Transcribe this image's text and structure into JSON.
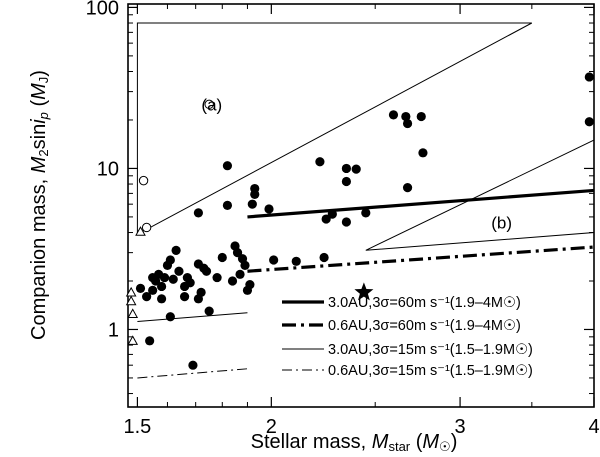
{
  "chart_data": {
    "type": "scatter",
    "title": "",
    "xlabel": "Stellar mass, M_star (M_☉)",
    "ylabel": "Companion mass, M_2 sin i_p (M_J)",
    "xscale": "log",
    "yscale": "log",
    "xlim": [
      1.47,
      4.0
    ],
    "ylim": [
      0.33,
      105
    ],
    "x_ticks": [
      {
        "value": 1.5,
        "label": "1.5"
      },
      {
        "value": 2,
        "label": "2"
      },
      {
        "value": 3,
        "label": "3"
      },
      {
        "value": 4,
        "label": "4"
      }
    ],
    "y_ticks": [
      {
        "value": 1,
        "label": "1"
      },
      {
        "value": 10,
        "label": "10"
      },
      {
        "value": 100,
        "label": "100"
      }
    ],
    "legend_position": "bottom-right",
    "annotations": [
      {
        "text": "(a)",
        "x": 1.76,
        "y": 25
      },
      {
        "text": "(b)",
        "x": 3.28,
        "y": 4.6
      }
    ],
    "series": [
      {
        "marker": "filled-circle",
        "points": [
          [
            1.51,
            1.8
          ],
          [
            1.53,
            1.6
          ],
          [
            1.54,
            0.85
          ],
          [
            1.55,
            2.1
          ],
          [
            1.55,
            1.75
          ],
          [
            1.56,
            2.0
          ],
          [
            1.57,
            2.2
          ],
          [
            1.58,
            1.85
          ],
          [
            1.58,
            1.55
          ],
          [
            1.59,
            2.1
          ],
          [
            1.6,
            2.5
          ],
          [
            1.61,
            1.2
          ],
          [
            1.61,
            2.7
          ],
          [
            1.62,
            2.05
          ],
          [
            1.63,
            3.1
          ],
          [
            1.64,
            2.3
          ],
          [
            1.66,
            1.85
          ],
          [
            1.66,
            1.6
          ],
          [
            1.67,
            2.1
          ],
          [
            1.68,
            1.95
          ],
          [
            1.69,
            0.6
          ],
          [
            1.71,
            1.55
          ],
          [
            1.71,
            5.3
          ],
          [
            1.71,
            2.55
          ],
          [
            1.72,
            1.7
          ],
          [
            1.73,
            2.4
          ],
          [
            1.74,
            2.3
          ],
          [
            1.75,
            1.3
          ],
          [
            1.78,
            2.1
          ],
          [
            1.8,
            2.8
          ],
          [
            1.82,
            10.4
          ],
          [
            1.82,
            5.9
          ],
          [
            1.84,
            2.0
          ],
          [
            1.85,
            3.3
          ],
          [
            1.86,
            3.0
          ],
          [
            1.87,
            2.2
          ],
          [
            1.88,
            2.75
          ],
          [
            1.89,
            2.5
          ],
          [
            1.9,
            1.75
          ],
          [
            1.91,
            1.9
          ],
          [
            1.92,
            6.0
          ],
          [
            1.93,
            6.9
          ],
          [
            1.93,
            7.5
          ],
          [
            1.99,
            5.6
          ],
          [
            2.01,
            2.7
          ],
          [
            2.11,
            2.65
          ],
          [
            2.22,
            11.0
          ],
          [
            2.24,
            2.8
          ],
          [
            2.25,
            4.85
          ],
          [
            2.28,
            5.2
          ],
          [
            2.35,
            4.65
          ],
          [
            2.35,
            10.0
          ],
          [
            2.35,
            8.3
          ],
          [
            2.4,
            9.9
          ],
          [
            2.45,
            5.3
          ],
          [
            2.6,
            21.5
          ],
          [
            2.67,
            21.0
          ],
          [
            2.68,
            19.0
          ],
          [
            2.68,
            7.6
          ],
          [
            2.76,
            21.0
          ],
          [
            2.77,
            12.5
          ],
          [
            3.96,
            37.0
          ],
          [
            3.96,
            19.5
          ]
        ]
      },
      {
        "marker": "open-circle",
        "points": [
          [
            1.52,
            8.4
          ],
          [
            1.53,
            4.3
          ],
          [
            1.75,
            25.0
          ]
        ]
      },
      {
        "marker": "open-triangle",
        "points": [
          [
            1.48,
            1.7
          ],
          [
            1.48,
            1.5
          ],
          [
            1.485,
            1.25
          ],
          [
            1.485,
            0.85
          ],
          [
            1.51,
            4.05
          ]
        ]
      },
      {
        "marker": "star",
        "points": [
          [
            2.44,
            1.7
          ]
        ]
      },
      {
        "name": "3.0AU,3σ=60m s⁻¹(1.9–4M☉)",
        "style": "thick-solid",
        "points": [
          [
            1.9,
            5.0
          ],
          [
            4.0,
            7.3
          ]
        ]
      },
      {
        "name": "0.6AU,3σ=60m s⁻¹(1.9–4M☉)",
        "style": "thick-dash-dot",
        "points": [
          [
            1.9,
            2.3
          ],
          [
            4.0,
            3.25
          ]
        ]
      },
      {
        "name": "3.0AU,3σ=15m s⁻¹(1.5–1.9M☉)",
        "style": "thin-solid",
        "points": [
          [
            1.5,
            1.12
          ],
          [
            1.9,
            1.27
          ]
        ]
      },
      {
        "name": "0.6AU,3σ=15m s⁻¹(1.5–1.9M☉)",
        "style": "thin-dash-dot",
        "points": [
          [
            1.5,
            0.5
          ],
          [
            1.9,
            0.57
          ]
        ]
      }
    ],
    "regions": [
      {
        "label": "(a)",
        "points": [
          [
            1.5,
            3.9
          ],
          [
            1.5,
            80
          ],
          [
            3.5,
            80
          ]
        ]
      },
      {
        "label": "(b)",
        "points": [
          [
            2.45,
            3.1
          ],
          [
            4.0,
            4.0
          ],
          [
            4.0,
            15
          ]
        ]
      }
    ]
  }
}
